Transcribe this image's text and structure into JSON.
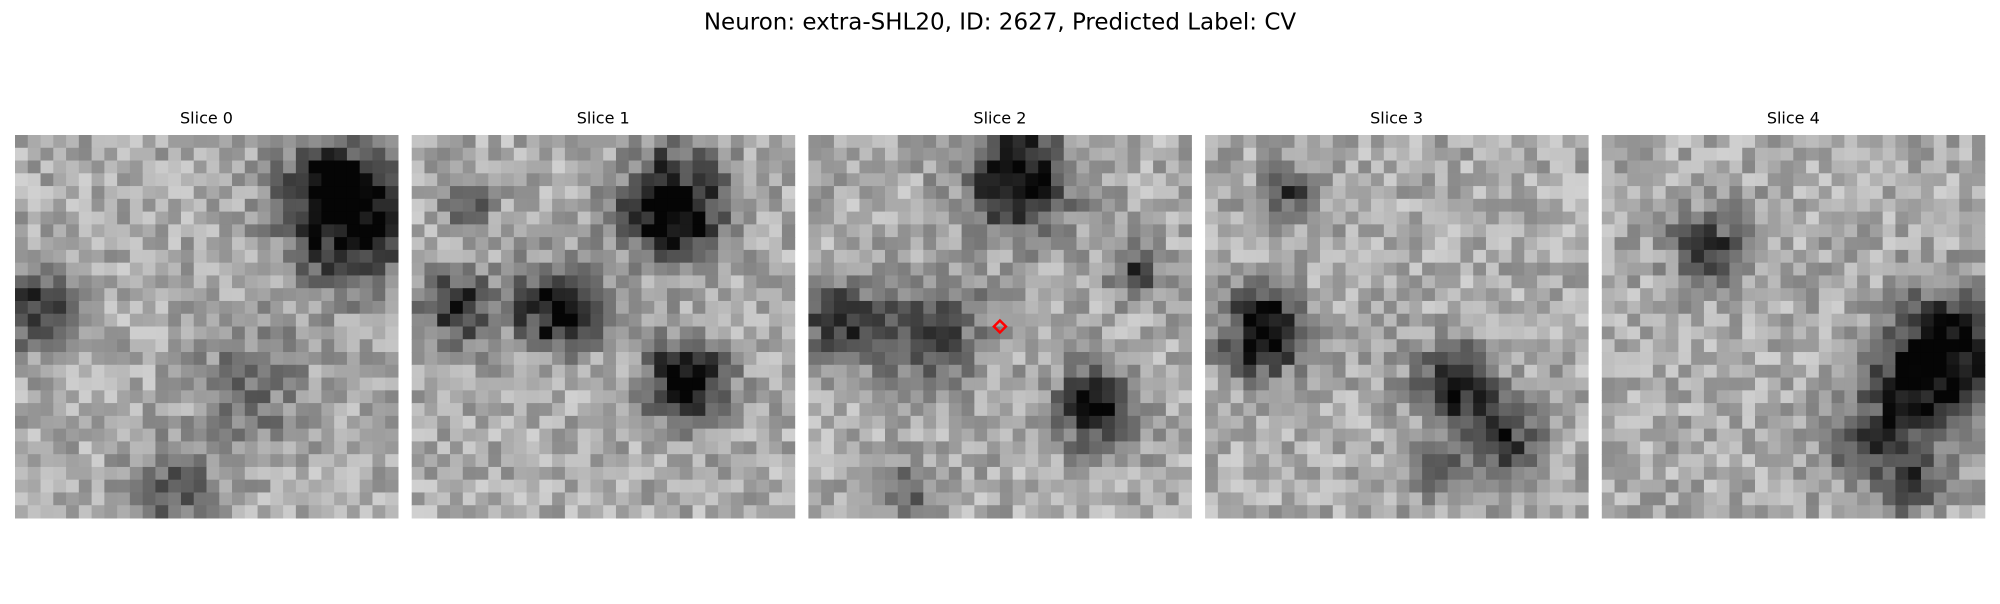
{
  "title": "Neuron: extra-SHL20, ID: 2627, Predicted Label: CV",
  "panels": [
    {
      "title": "Slice 0"
    },
    {
      "title": "Slice 1"
    },
    {
      "title": "Slice 2"
    },
    {
      "title": "Slice 3"
    },
    {
      "title": "Slice 4"
    }
  ]
}
